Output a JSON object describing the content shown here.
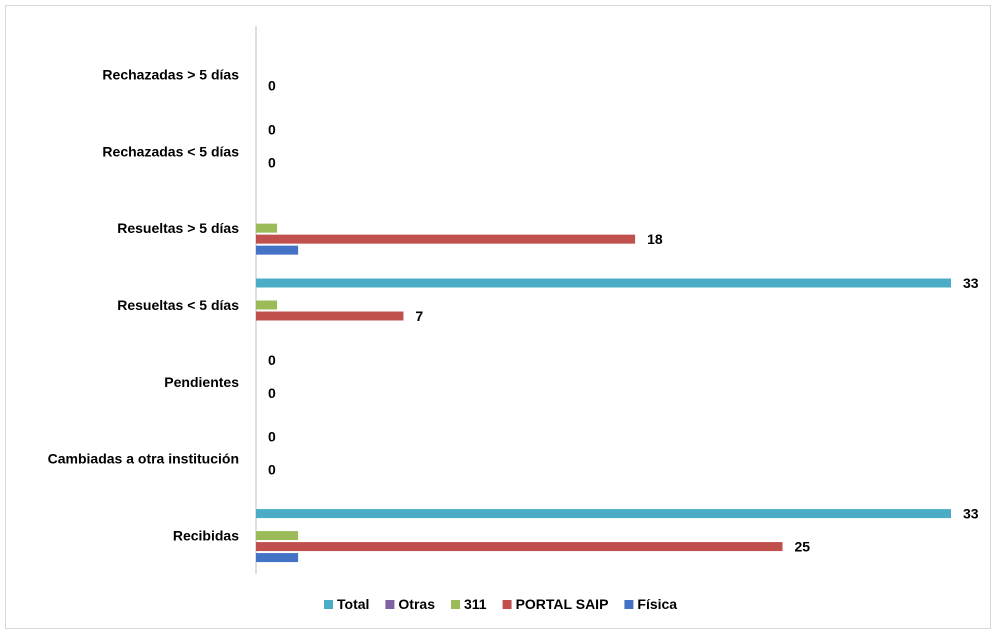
{
  "chart_data": {
    "type": "bar",
    "orientation": "horizontal",
    "categories": [
      "Recibidas",
      "Cambiadas a otra institución",
      "Pendientes",
      "Resueltas < 5 días",
      "Resueltas > 5 días",
      "Rechazadas  < 5 días",
      "Rechazadas  > 5 días"
    ],
    "series": [
      {
        "name": "Física",
        "color": "#4472C4",
        "values": [
          2,
          0,
          0,
          0,
          2,
          0,
          0
        ]
      },
      {
        "name": "PORTAL SAIP",
        "color": "#C0504D",
        "values": [
          25,
          0,
          0,
          7,
          18,
          0,
          0
        ]
      },
      {
        "name": "311",
        "color": "#9BBB59",
        "values": [
          2,
          0,
          0,
          1,
          1,
          0,
          0
        ]
      },
      {
        "name": "Otras",
        "color": "#8064A2",
        "values": [
          0,
          0,
          0,
          0,
          0,
          0,
          0
        ]
      },
      {
        "name": "Total",
        "color": "#4BACC6",
        "values": [
          33,
          0,
          0,
          33,
          0,
          0,
          0
        ]
      }
    ],
    "data_labels": [
      {
        "category": "Recibidas",
        "series": "PORTAL SAIP",
        "text": "25"
      },
      {
        "category": "Recibidas",
        "series": "Total",
        "text": "33"
      },
      {
        "category": "Cambiadas a otra institución",
        "series": "PORTAL SAIP",
        "text": "0"
      },
      {
        "category": "Cambiadas a otra institución",
        "series": "Total",
        "text": "0"
      },
      {
        "category": "Pendientes",
        "series": "PORTAL SAIP",
        "text": "0"
      },
      {
        "category": "Pendientes",
        "series": "Total",
        "text": "0"
      },
      {
        "category": "Resueltas < 5 días",
        "series": "PORTAL SAIP",
        "text": "7"
      },
      {
        "category": "Resueltas < 5 días",
        "series": "Total",
        "text": "33"
      },
      {
        "category": "Resueltas > 5 días",
        "series": "PORTAL SAIP",
        "text": "18"
      },
      {
        "category": "Rechazadas  < 5 días",
        "series": "PORTAL SAIP",
        "text": "0"
      },
      {
        "category": "Rechazadas  < 5 días",
        "series": "Total",
        "text": "0"
      },
      {
        "category": "Rechazadas  > 5 días",
        "series": "PORTAL SAIP",
        "text": "0"
      }
    ],
    "xlim": [
      0,
      33
    ],
    "legend": {
      "position": "bottom",
      "order": [
        "Total",
        "Otras",
        "311",
        "PORTAL SAIP",
        "Física"
      ]
    },
    "grid": false
  }
}
